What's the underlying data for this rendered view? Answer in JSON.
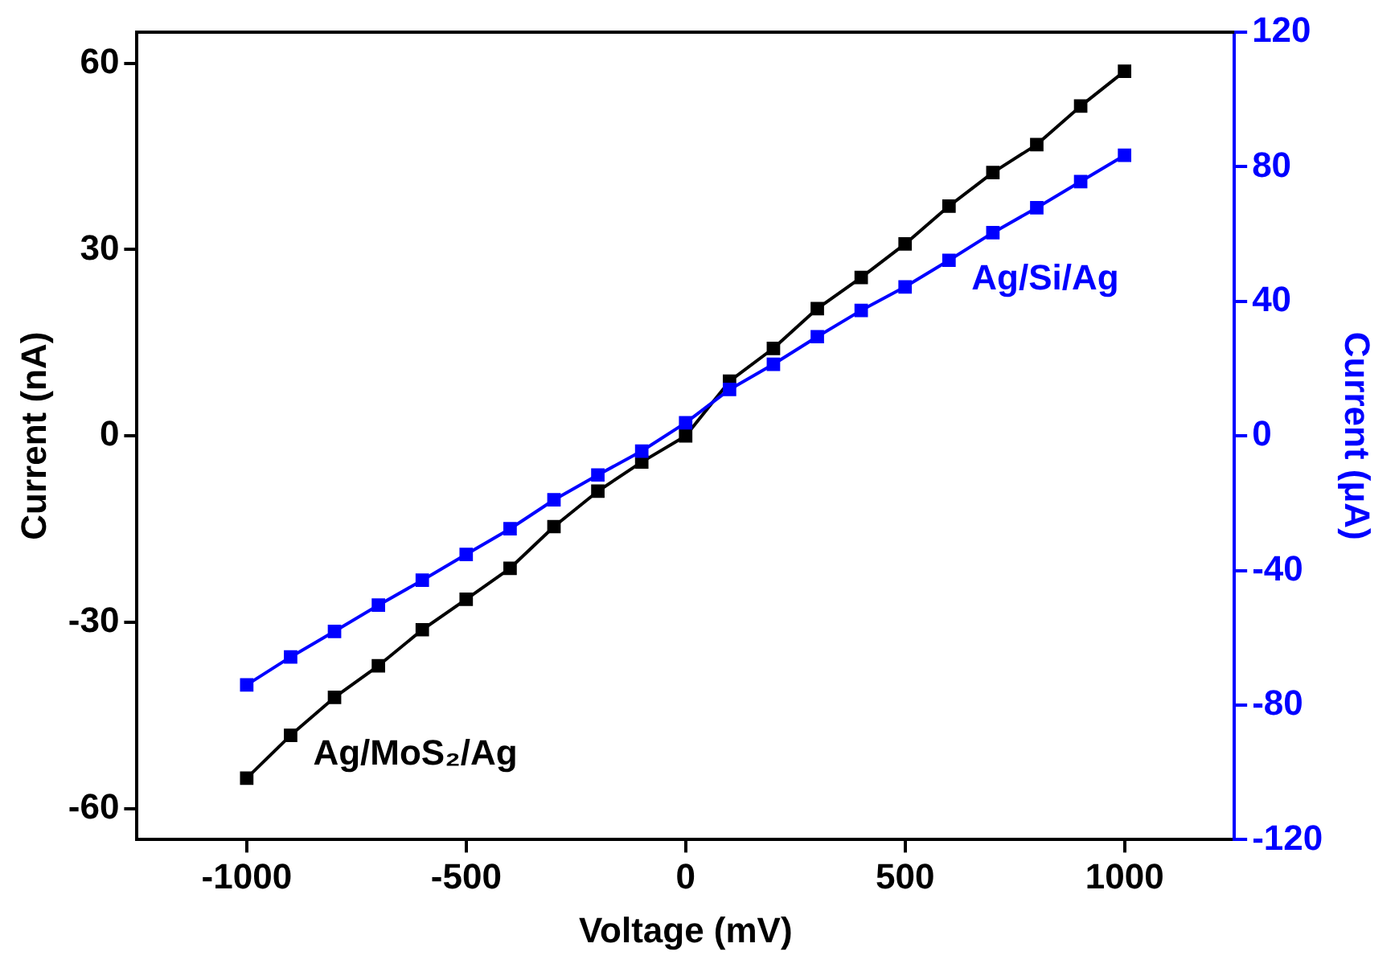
{
  "chart_data": {
    "type": "line",
    "xlabel": "Voltage (mV)",
    "ylabel": "Current (nA)",
    "y2label": "Current (μA)",
    "x": [
      -1000,
      -900,
      -800,
      -700,
      -600,
      -500,
      -400,
      -300,
      -200,
      -100,
      0,
      100,
      200,
      300,
      400,
      500,
      600,
      700,
      800,
      900,
      1000
    ],
    "xlim": [
      -1250,
      1250
    ],
    "xticks": [
      -1000,
      -500,
      0,
      500,
      1000
    ],
    "ylim": [
      -65,
      65
    ],
    "yticks": [
      -60,
      -30,
      0,
      30,
      60
    ],
    "y2lim": [
      -120,
      120
    ],
    "y2ticks": [
      -120,
      -80,
      -40,
      0,
      40,
      80,
      120
    ],
    "marker": "square",
    "line_style": "solid",
    "grid": false,
    "legend": false,
    "series": [
      {
        "name": "Ag/MoS₂/Ag",
        "color": "#000000",
        "values": [
          -55.1,
          -48.2,
          -42.1,
          -37.0,
          -31.2,
          -26.3,
          -21.3,
          -14.6,
          -8.9,
          -4.2,
          0,
          8.8,
          14.1,
          20.5,
          25.5,
          30.9,
          37.0,
          42.4,
          46.9,
          53.1,
          58.7
        ]
      },
      {
        "name": "Ag/Si/Ag",
        "color": "#0000ff",
        "axis": "y2",
        "values": [
          -74.0,
          -65.7,
          -58.1,
          -50.3,
          -42.9,
          -35.2,
          -27.6,
          -19.0,
          -11.6,
          -4.5,
          3.9,
          13.8,
          21.3,
          29.5,
          37.3,
          44.3,
          52.2,
          60.4,
          67.8,
          75.6,
          83.4
        ]
      }
    ]
  }
}
